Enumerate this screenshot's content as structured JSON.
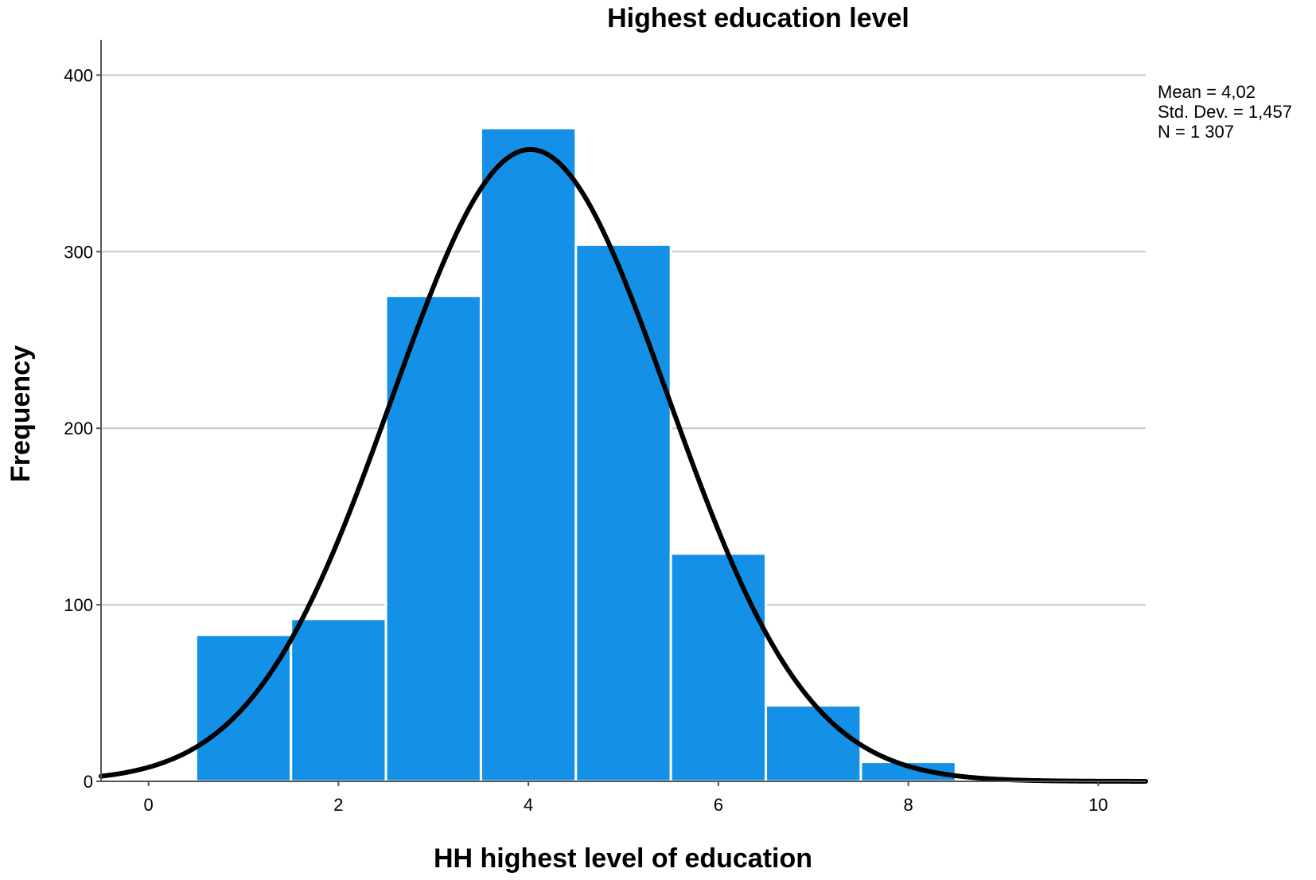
{
  "chart_data": {
    "type": "bar",
    "title": "Highest education level",
    "xlabel": "HH highest level of education",
    "ylabel": "Frequency",
    "x": [
      1,
      2,
      3,
      4,
      5,
      6,
      7,
      8
    ],
    "values": [
      83,
      92,
      275,
      370,
      304,
      129,
      43,
      11
    ],
    "xlim": [
      -0.5,
      10.5
    ],
    "ylim": [
      0,
      420
    ],
    "xticks": [
      0,
      2,
      4,
      6,
      8,
      10
    ],
    "yticks": [
      0,
      100,
      200,
      300,
      400
    ],
    "grid": true,
    "bar_color": "#1490e6",
    "normal_curve": {
      "mean": 4.02,
      "std_dev": 1.457,
      "n": 1307,
      "color": "#000000"
    },
    "stats": [
      "Mean = 4,02",
      "Std. Dev. = 1,457",
      "N = 1 307"
    ]
  }
}
